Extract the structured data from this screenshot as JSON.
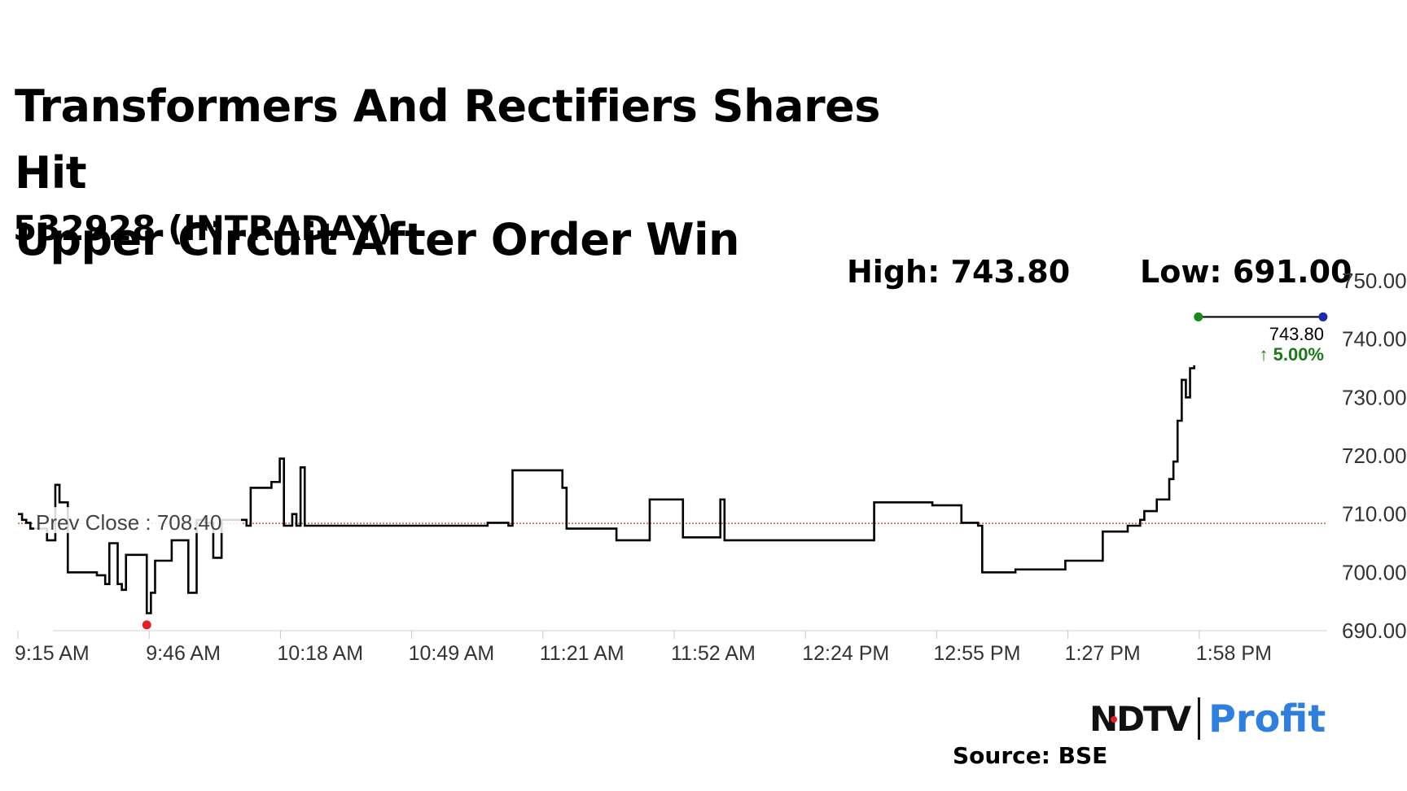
{
  "headline": {
    "line1": "Transformers And Rectifiers Shares Hit",
    "line2": "Upper Circuit After Order Win"
  },
  "subtitle": "532928 (INTRADAY)",
  "stats": {
    "high": "High: 743.80",
    "low": "Low: 691.00"
  },
  "source": "Source: BSE",
  "brand": {
    "part1": "NDTV",
    "part2": "Profit",
    "accent_color": "#2f7fe0",
    "dot_color": "#e31e24"
  },
  "chart_data": {
    "type": "line",
    "title": "",
    "xlabel": "",
    "ylabel": "",
    "ylim": [
      690,
      750
    ],
    "y_ticks": [
      "690.00",
      "700.00",
      "710.00",
      "720.00",
      "730.00",
      "740.00",
      "750.00"
    ],
    "x_ticks": [
      "9:15 AM",
      "9:46 AM",
      "10:18 AM",
      "10:49 AM",
      "11:21 AM",
      "11:52 AM",
      "12:24 PM",
      "12:55 PM",
      "1:27 PM",
      "1:58 PM"
    ],
    "x_range": [
      "9:15 AM",
      "2:30 PM"
    ],
    "reference_line": {
      "label": "Prev Close : 708.40",
      "value": 708.4,
      "color": "#c0392b"
    },
    "last_price": {
      "label": "743.80",
      "change": "5.00%",
      "change_color": "#1a7a1a"
    },
    "grid": false,
    "series": [
      {
        "color": "#000000",
        "points": [
          [
            "09:15",
            710.0
          ],
          [
            "09:16",
            709.0
          ],
          [
            "09:17",
            708.5
          ],
          [
            "09:18",
            707.5
          ],
          [
            "09:22",
            705.5
          ],
          [
            "09:24",
            715.0
          ],
          [
            "09:25",
            712.0
          ],
          [
            "09:27",
            700.0
          ],
          [
            "09:34",
            699.5
          ],
          [
            "09:36",
            698.0
          ],
          [
            "09:37",
            705.0
          ],
          [
            "09:39",
            698.0
          ],
          [
            "09:40",
            697.0
          ],
          [
            "09:41",
            703.0
          ],
          [
            "09:46",
            693.0
          ],
          [
            "09:47",
            696.5
          ],
          [
            "09:48",
            702.0
          ],
          [
            "09:52",
            705.5
          ],
          [
            "09:56",
            696.5
          ],
          [
            "09:58",
            709.0
          ],
          [
            "10:00",
            708.5
          ],
          [
            "10:02",
            702.5
          ],
          [
            "10:04",
            709.0
          ],
          [
            "10:10",
            708.0
          ],
          [
            "10:11",
            714.5
          ],
          [
            "10:16",
            715.5
          ],
          [
            "10:18",
            719.5
          ],
          [
            "10:19",
            708.0
          ],
          [
            "10:21",
            710.0
          ],
          [
            "10:22",
            708.0
          ],
          [
            "10:23",
            718.0
          ],
          [
            "10:24",
            708.0
          ],
          [
            "10:41",
            708.0
          ],
          [
            "10:49",
            708.0
          ],
          [
            "11:08",
            708.5
          ],
          [
            "11:13",
            708.0
          ],
          [
            "11:14",
            717.5
          ],
          [
            "11:26",
            714.5
          ],
          [
            "11:27",
            707.5
          ],
          [
            "11:38",
            707.5
          ],
          [
            "11:39",
            705.5
          ],
          [
            "11:46",
            705.5
          ],
          [
            "11:47",
            712.5
          ],
          [
            "11:54",
            712.5
          ],
          [
            "11:55",
            706.0
          ],
          [
            "12:03",
            706.0
          ],
          [
            "12:04",
            712.5
          ],
          [
            "12:05",
            705.5
          ],
          [
            "12:24",
            705.5
          ],
          [
            "12:40",
            705.5
          ],
          [
            "12:41",
            712.0
          ],
          [
            "12:55",
            711.5
          ],
          [
            "13:01",
            711.5
          ],
          [
            "13:02",
            708.5
          ],
          [
            "13:06",
            708.0
          ],
          [
            "13:07",
            700.0
          ],
          [
            "13:15",
            700.5
          ],
          [
            "13:24",
            700.5
          ],
          [
            "13:27",
            702.0
          ],
          [
            "13:35",
            702.0
          ],
          [
            "13:36",
            707.0
          ],
          [
            "13:42",
            708.0
          ],
          [
            "13:45",
            709.0
          ],
          [
            "13:46",
            710.5
          ],
          [
            "13:49",
            712.5
          ],
          [
            "13:52",
            716.0
          ],
          [
            "13:53",
            719.0
          ],
          [
            "13:54",
            726.0
          ],
          [
            "13:55",
            733.0
          ],
          [
            "13:56",
            730.0
          ],
          [
            "13:57",
            735.0
          ],
          [
            "13:58",
            735.5
          ]
        ]
      }
    ],
    "markers": [
      {
        "name": "low",
        "time": "09:46",
        "value": 691.0,
        "color": "#e31e24"
      },
      {
        "name": "open-circuit-start",
        "time": "13:59",
        "value": 743.8,
        "color": "#1a8a1a"
      },
      {
        "name": "last",
        "time": "14:29",
        "value": 743.8,
        "color": "#1f2aa8"
      }
    ]
  }
}
